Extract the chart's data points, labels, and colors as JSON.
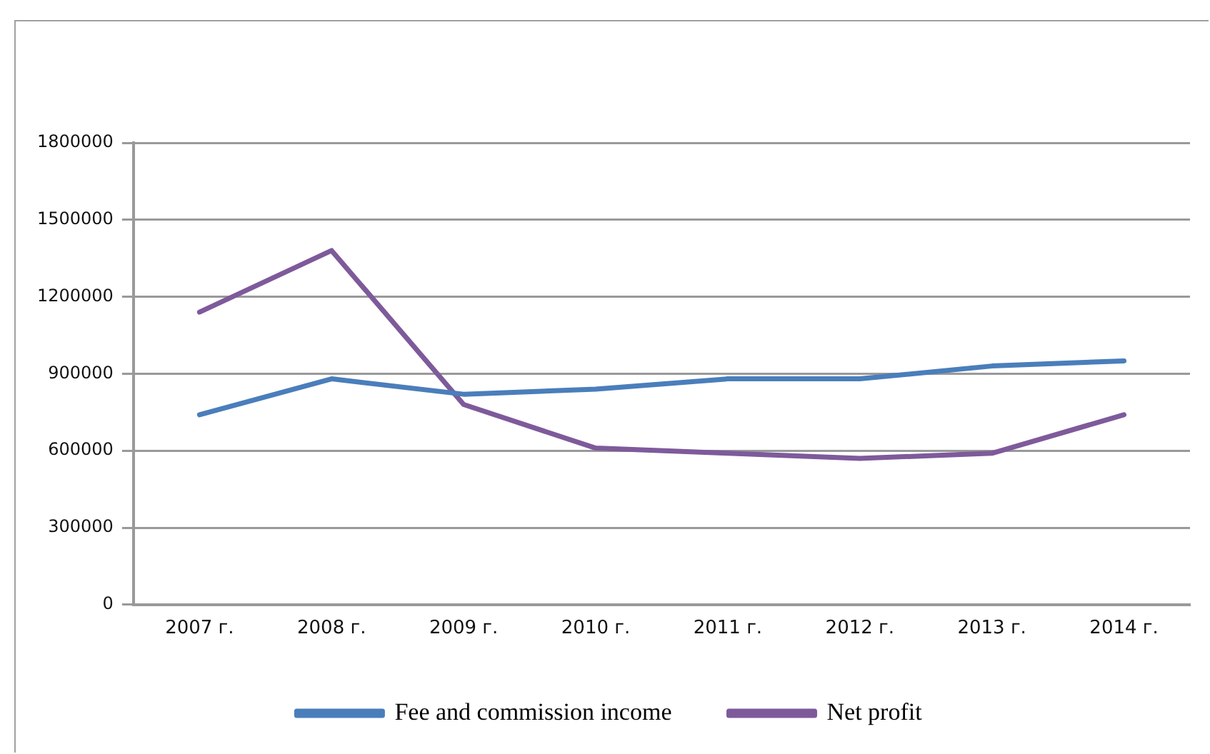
{
  "chart_data": {
    "type": "line",
    "categories": [
      "2007 г.",
      "2008 г.",
      "2009 г.",
      "2010 г.",
      "2011 г.",
      "2012 г.",
      "2013 г.",
      "2014 г."
    ],
    "series": [
      {
        "name": "Fee and commission income",
        "color": "#4a7ebb",
        "values": [
          740000,
          880000,
          820000,
          840000,
          880000,
          880000,
          930000,
          950000
        ]
      },
      {
        "name": "Net profit",
        "color": "#7e5a9b",
        "values": [
          1140000,
          1380000,
          780000,
          610000,
          590000,
          570000,
          590000,
          740000
        ]
      }
    ],
    "ylim": [
      0,
      1800000
    ],
    "yticks": [
      0,
      300000,
      600000,
      900000,
      1200000,
      1500000,
      1800000
    ],
    "grid": "y",
    "legend": "bottom",
    "marker": "none",
    "line_style": "solid"
  }
}
